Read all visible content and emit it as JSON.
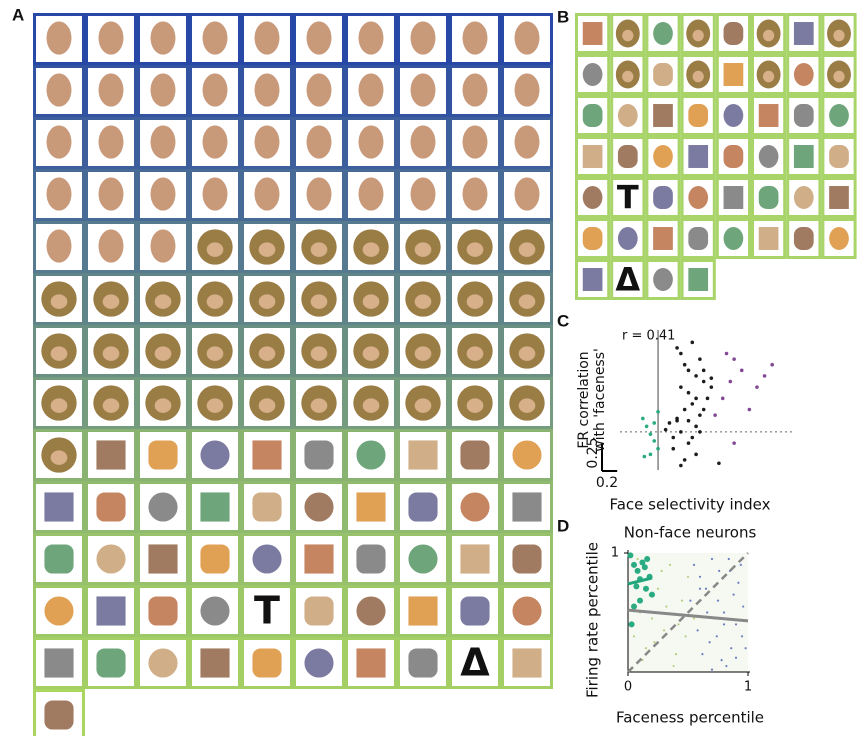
{
  "panels": {
    "a": "A",
    "b": "B",
    "c": "C",
    "d": "D"
  },
  "panel_a": {
    "text_stimuli": [
      "T",
      "Δ"
    ]
  },
  "panel_b": {
    "text_stimuli": [
      "T",
      "Δ"
    ]
  },
  "chart_data": [
    {
      "type": "scatter",
      "annotation": "r = 0.41",
      "ylabel_lines": [
        "FR correlation",
        "with 'faceness'"
      ],
      "xlabel": "Face selectivity index",
      "xlim": [
        -0.5,
        1.8
      ],
      "ylim": [
        -0.34,
        0.91
      ],
      "x_scale_bar": 0.2,
      "y_scale_bar": 0.25,
      "series": [
        {
          "color": "#111111",
          "marker": "small",
          "x": [
            0.25,
            0.3,
            0.35,
            0.4,
            0.45,
            0.5,
            0.55,
            0.6,
            0.3,
            0.4,
            0.5,
            0.6,
            0.7,
            0.35,
            0.45,
            0.55,
            0.65,
            0.25,
            0.5,
            0.6,
            0.2,
            0.3,
            0.4,
            0.5,
            0.15,
            0.2,
            0.35,
            0.45,
            0.1,
            0.25,
            0.3,
            0.4,
            0.55,
            0.8,
            0.7
          ],
          "values": [
            0.75,
            0.7,
            0.6,
            0.55,
            0.8,
            0.5,
            0.65,
            0.45,
            0.4,
            0.35,
            0.3,
            0.55,
            0.4,
            0.2,
            0.25,
            0.15,
            0.3,
            0.1,
            0.05,
            0.2,
            -0.05,
            0.0,
            -0.1,
            -0.2,
            0.08,
            -0.15,
            -0.25,
            -0.05,
            0.02,
            0.12,
            -0.3,
            0.1,
            0.0,
            -0.28,
            0.48
          ]
        },
        {
          "color": "#7b3f8f",
          "marker": "small",
          "x": [
            0.9,
            1.0,
            1.1,
            0.95,
            1.3,
            1.5,
            0.85,
            1.2,
            1.0,
            0.75,
            1.4
          ],
          "values": [
            0.7,
            0.65,
            0.55,
            0.45,
            0.4,
            0.6,
            0.3,
            0.2,
            -0.1,
            0.15,
            0.5
          ]
        },
        {
          "color": "#1fa67a",
          "marker": "small",
          "x": [
            -0.2,
            -0.15,
            -0.1,
            -0.05,
            0.0,
            -0.1,
            -0.18,
            -0.05,
            0.0
          ],
          "values": [
            0.12,
            0.05,
            -0.02,
            -0.08,
            -0.15,
            -0.2,
            -0.22,
            0.08,
            0.18
          ]
        }
      ]
    },
    {
      "type": "scatter",
      "title": "Non-face neurons",
      "xlabel": "Faceness percentile",
      "ylabel": "Firing rate percentile",
      "xlim": [
        0,
        1
      ],
      "ylim": [
        0,
        1
      ],
      "xticks": [
        0,
        1
      ],
      "yticks": [
        1
      ],
      "series": [
        {
          "color": "#3f55b0",
          "marker": "tiny",
          "x": [
            0.55,
            0.6,
            0.65,
            0.7,
            0.75,
            0.8,
            0.85,
            0.9,
            0.95,
            0.98,
            0.58,
            0.62,
            0.68,
            0.72,
            0.78,
            0.82,
            0.88,
            0.92,
            0.96,
            0.52,
            0.66,
            0.74,
            0.86,
            0.94,
            0.7,
            0.8,
            0.9,
            0.6,
            0.76,
            0.84
          ],
          "values": [
            0.9,
            0.8,
            0.7,
            0.95,
            0.6,
            0.5,
            0.85,
            0.4,
            0.3,
            0.2,
            0.35,
            0.15,
            0.25,
            0.45,
            0.1,
            0.05,
            0.65,
            0.75,
            0.55,
            0.6,
            0.5,
            0.3,
            0.2,
            0.9,
            0.02,
            0.4,
            0.12,
            0.7,
            0.85,
            0.95
          ]
        },
        {
          "color": "#9cc45a",
          "marker": "tiny",
          "x": [
            0.05,
            0.1,
            0.15,
            0.2,
            0.25,
            0.3,
            0.35,
            0.4,
            0.45,
            0.5,
            0.12,
            0.22,
            0.32,
            0.42,
            0.28,
            0.38,
            0.18,
            0.08,
            0.48,
            0.55
          ],
          "values": [
            0.3,
            0.5,
            0.2,
            0.45,
            0.7,
            0.35,
            0.9,
            0.15,
            0.6,
            0.8,
            0.1,
            0.25,
            0.55,
            0.4,
            0.85,
            0.05,
            0.65,
            0.95,
            0.3,
            0.45
          ]
        },
        {
          "color": "#1fa67a",
          "marker": "large",
          "x": [
            0.02,
            0.05,
            0.08,
            0.1,
            0.12,
            0.15,
            0.18,
            0.05,
            0.1,
            0.03,
            0.14,
            0.07,
            0.16,
            0.2
          ],
          "values": [
            0.98,
            0.9,
            0.85,
            0.78,
            0.92,
            0.7,
            0.8,
            0.55,
            0.6,
            0.4,
            0.88,
            0.72,
            0.95,
            0.65
          ]
        }
      ],
      "fit_lines": [
        {
          "color": "#1fa67a",
          "x": [
            0,
            0.2
          ],
          "values": [
            0.74,
            0.79
          ]
        },
        {
          "color": "#888888",
          "x": [
            0,
            1
          ],
          "values": [
            0.52,
            0.43
          ]
        }
      ]
    }
  ]
}
